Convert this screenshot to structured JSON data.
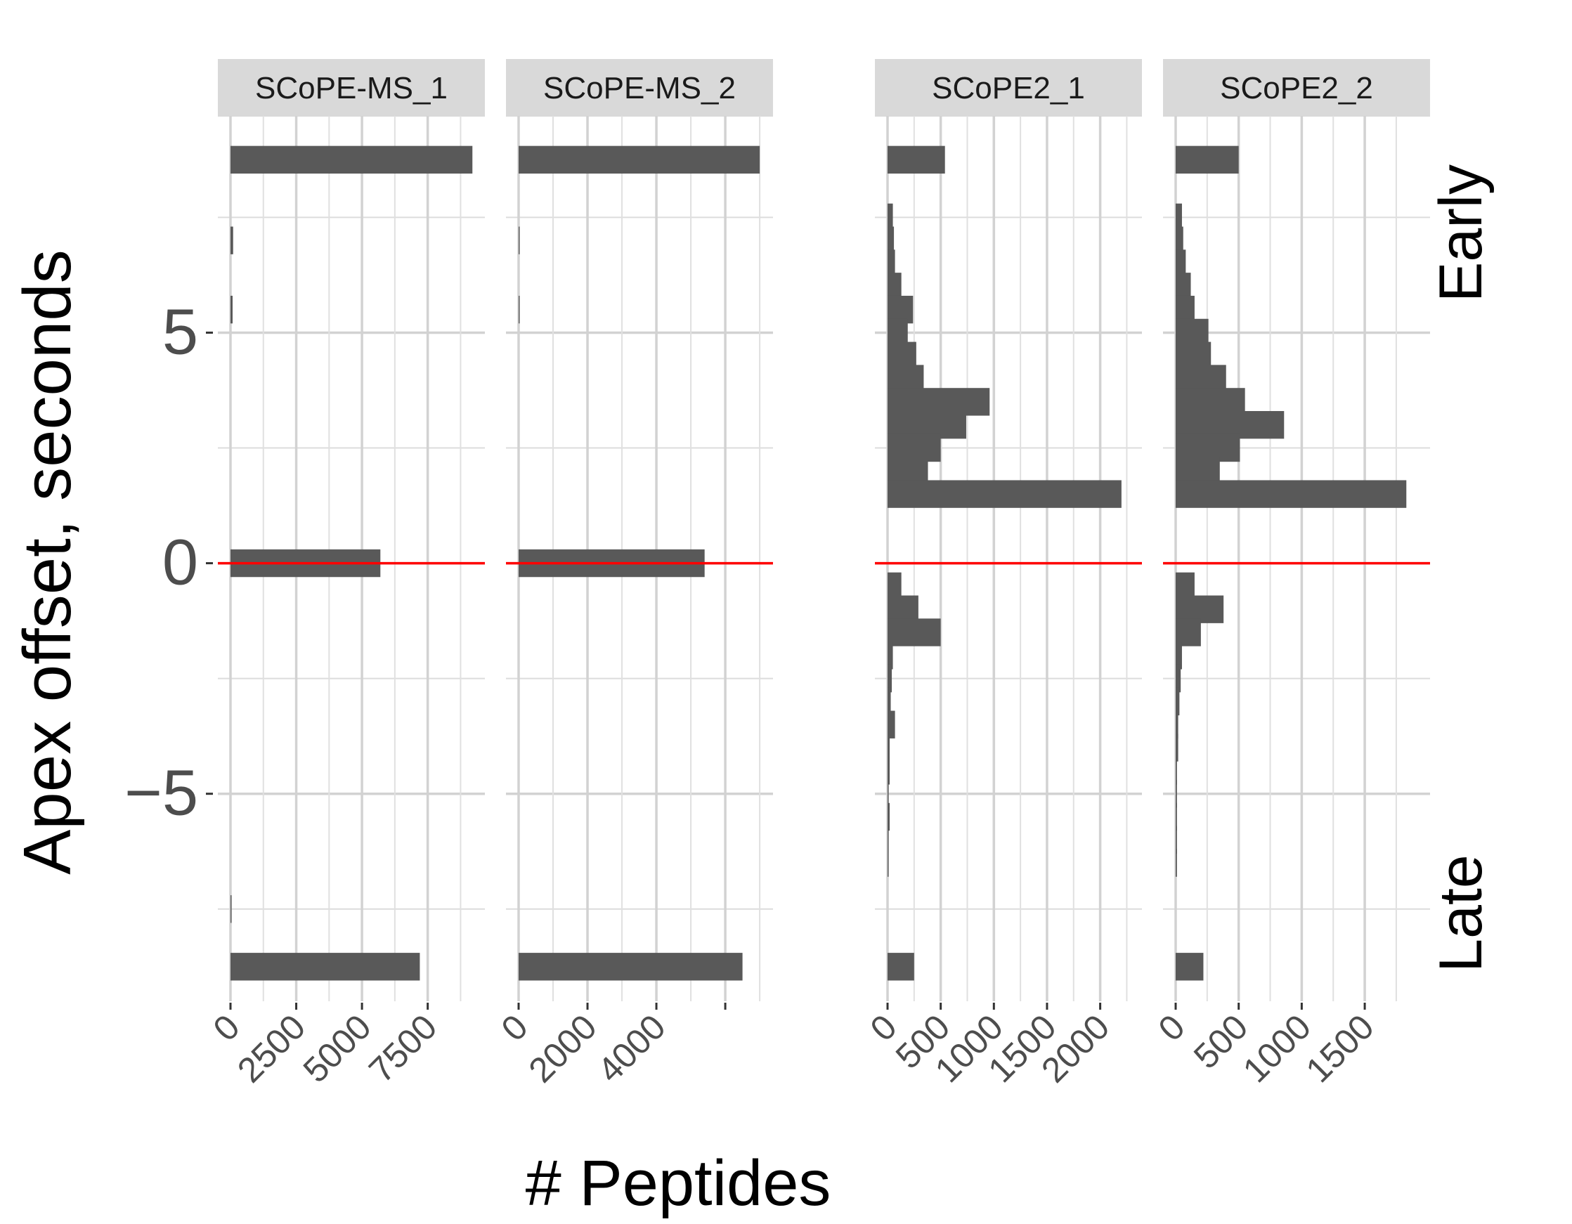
{
  "chart_data": {
    "type": "bar",
    "orientation": "horizontal",
    "ylabel": "Apex offset, seconds",
    "xlabel": "#  Peptides",
    "ylim": [
      -9.5,
      9.7
    ],
    "y_ticks": [
      5,
      0,
      -5
    ],
    "y_tick_labels": [
      "5",
      "0",
      "−5"
    ],
    "side_labels": {
      "top": "Early",
      "bottom": "Late"
    },
    "reference_line": {
      "y": 0,
      "color": "#ff0000"
    },
    "bar_color": "#595959",
    "bins_y": [
      8.75,
      7.5,
      7.0,
      6.5,
      6.0,
      5.5,
      5.0,
      4.5,
      4.0,
      3.5,
      3.0,
      2.5,
      2.0,
      1.5,
      1.0,
      0.5,
      0.0,
      -0.5,
      -1.0,
      -1.5,
      -2.0,
      -2.5,
      -3.0,
      -3.5,
      -4.0,
      -4.5,
      -5.0,
      -5.5,
      -6.0,
      -6.5,
      -7.0,
      -7.5,
      -8.0,
      -8.75
    ],
    "bin_height": 0.6,
    "panels": [
      {
        "name": "SCoPE-MS_1",
        "xlim": [
          0,
          9300
        ],
        "x_ticks": [
          0,
          2500,
          5000,
          7500
        ],
        "x_tick_labels": [
          "0",
          "2500",
          "5000",
          "7500"
        ],
        "values": [
          9200,
          0,
          100,
          0,
          0,
          80,
          0,
          0,
          0,
          0,
          0,
          0,
          0,
          0,
          0,
          0,
          5700,
          0,
          0,
          0,
          0,
          0,
          0,
          0,
          0,
          0,
          0,
          0,
          0,
          0,
          0,
          40,
          0,
          7200
        ]
      },
      {
        "name": "SCoPE-MS_2",
        "xlim": [
          0,
          7100
        ],
        "x_ticks": [
          0,
          2000,
          4000,
          6000
        ],
        "x_tick_labels": [
          "0",
          "2000",
          "4000",
          ""
        ],
        "values": [
          7000,
          0,
          30,
          0,
          0,
          30,
          0,
          0,
          0,
          0,
          0,
          0,
          0,
          0,
          0,
          0,
          5400,
          0,
          0,
          0,
          0,
          0,
          0,
          0,
          0,
          0,
          0,
          0,
          0,
          0,
          0,
          0,
          0,
          6500
        ]
      },
      {
        "name": "SCoPE2_1",
        "xlim": [
          0,
          2300
        ],
        "x_ticks": [
          0,
          500,
          1000,
          1500,
          2000
        ],
        "x_tick_labels": [
          "0",
          "500",
          "1000",
          "1500",
          "2000"
        ],
        "values": [
          540,
          50,
          60,
          70,
          130,
          240,
          190,
          270,
          340,
          960,
          740,
          500,
          380,
          2200,
          0,
          0,
          0,
          130,
          290,
          500,
          50,
          40,
          30,
          70,
          20,
          20,
          10,
          20,
          10,
          10,
          0,
          0,
          0,
          250
        ]
      },
      {
        "name": "SCoPE2_2",
        "xlim": [
          0,
          1940
        ],
        "x_ticks": [
          0,
          500,
          1000,
          1500
        ],
        "x_tick_labels": [
          "0",
          "500",
          "1000",
          "1500"
        ],
        "values": [
          500,
          50,
          60,
          80,
          120,
          150,
          260,
          280,
          400,
          550,
          860,
          510,
          350,
          1830,
          0,
          0,
          0,
          150,
          380,
          200,
          50,
          40,
          30,
          20,
          20,
          10,
          10,
          10,
          10,
          10,
          0,
          0,
          0,
          220
        ]
      }
    ],
    "grid": true
  }
}
